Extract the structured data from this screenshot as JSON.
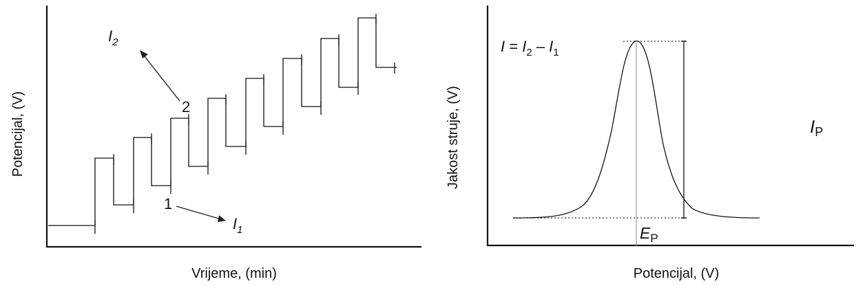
{
  "left_panel": {
    "xlabel": "Vrijeme, (min)",
    "ylabel": "Potencijal, (V)",
    "label_i2": {
      "main": "I",
      "sub": "2"
    },
    "label_i1": {
      "main": "I",
      "sub": "1"
    },
    "point_1": "1",
    "point_2": "2"
  },
  "right_panel": {
    "xlabel": "Potencijal, (V)",
    "ylabel": "Jakost struje, (V)",
    "formula": {
      "p1": "I",
      "p2": " = ",
      "p3": "I",
      "p4": "2",
      "p5": " – ",
      "p6": "I",
      "p7": "1"
    },
    "label_ip": {
      "main": "I",
      "sub": "P"
    },
    "label_ep": {
      "main": "E",
      "sub": "P"
    }
  }
}
